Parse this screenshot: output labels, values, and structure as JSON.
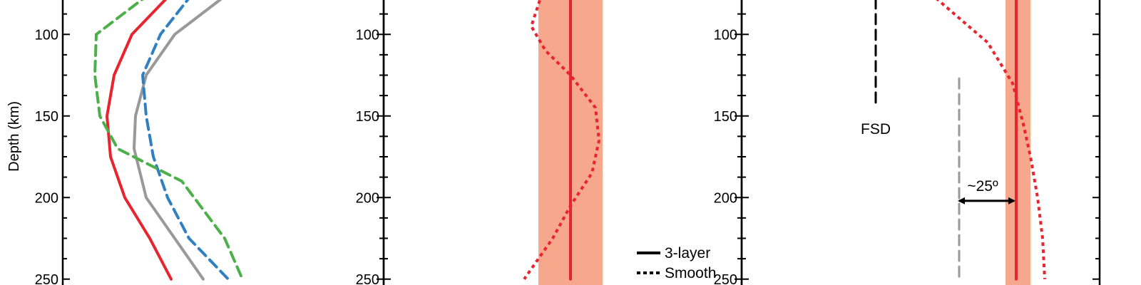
{
  "chart_data": [
    {
      "type": "line",
      "ylabel": "Depth (km)",
      "y_ticks": [
        "100",
        "150",
        "200",
        "250"
      ],
      "ylim": [
        75,
        250
      ],
      "y_reversed": true,
      "series": [
        {
          "color": "#e8242e",
          "style": "solid",
          "points": [
            [
              0.24,
              75
            ],
            [
              0.185,
              100
            ],
            [
              0.16,
              125
            ],
            [
              0.15,
              150
            ],
            [
              0.155,
              175
            ],
            [
              0.175,
              200
            ],
            [
              0.21,
              225
            ],
            [
              0.24,
              250
            ]
          ]
        },
        {
          "color": "#999999",
          "style": "solid",
          "points": [
            [
              0.32,
              75
            ],
            [
              0.245,
              100
            ],
            [
              0.205,
              125
            ],
            [
              0.19,
              150
            ],
            [
              0.188,
              170
            ],
            [
              0.205,
              200
            ],
            [
              0.245,
              225
            ],
            [
              0.285,
              250
            ]
          ]
        },
        {
          "color": "#2f7fc1",
          "style": "dashed",
          "points": [
            [
              0.27,
              75
            ],
            [
              0.225,
              100
            ],
            [
              0.2,
              125
            ],
            [
              0.205,
              150
            ],
            [
              0.215,
              175
            ],
            [
              0.235,
              200
            ],
            [
              0.265,
              225
            ],
            [
              0.32,
              250
            ]
          ]
        },
        {
          "color": "#4daf4a",
          "style": "dashed",
          "points": [
            [
              0.21,
              75
            ],
            [
              0.135,
              100
            ],
            [
              0.133,
              125
            ],
            [
              0.14,
              150
            ],
            [
              0.165,
              170
            ],
            [
              0.255,
              190
            ],
            [
              0.315,
              225
            ],
            [
              0.34,
              250
            ]
          ]
        }
      ]
    },
    {
      "type": "line",
      "y_ticks": [
        "100",
        "150",
        "200",
        "250"
      ],
      "ylim": [
        75,
        250
      ],
      "y_reversed": true,
      "band": {
        "x0": 0.755,
        "x1": 0.845,
        "color": "#f7a78c"
      },
      "series": [
        {
          "name": "3-layer",
          "color": "#e8242e",
          "style": "solid",
          "points": [
            [
              0.8,
              75
            ],
            [
              0.8,
              250
            ]
          ]
        },
        {
          "name": "Smooth",
          "color": "#e8242e",
          "style": "dotted",
          "points": [
            [
              0.76,
              75
            ],
            [
              0.745,
              95
            ],
            [
              0.765,
              110
            ],
            [
              0.8,
              125
            ],
            [
              0.835,
              145
            ],
            [
              0.84,
              165
            ],
            [
              0.83,
              185
            ],
            [
              0.8,
              205
            ],
            [
              0.775,
              225
            ],
            [
              0.735,
              250
            ]
          ]
        }
      ],
      "legend": {
        "position": "bottom-right",
        "entries": [
          "3-layer",
          "Smooth"
        ]
      }
    },
    {
      "type": "line",
      "y_ticks": [
        "100",
        "150",
        "200",
        "250"
      ],
      "ylim": [
        75,
        250
      ],
      "y_reversed": true,
      "band": {
        "x0": 1.41,
        "x1": 1.445,
        "color": "#f7a78c"
      },
      "series": [
        {
          "color": "#e8242e",
          "style": "solid",
          "points": [
            [
              1.425,
              75
            ],
            [
              1.425,
              250
            ]
          ]
        },
        {
          "color": "#e8242e",
          "style": "dotted",
          "points": [
            [
              1.305,
              75
            ],
            [
              1.345,
              90
            ],
            [
              1.385,
              105
            ],
            [
              1.42,
              130
            ],
            [
              1.435,
              155
            ],
            [
              1.445,
              175
            ],
            [
              1.455,
              200
            ],
            [
              1.462,
              225
            ],
            [
              1.465,
              250
            ]
          ]
        },
        {
          "color": "#999999",
          "style": "dashed",
          "points": [
            [
              1.345,
              127
            ],
            [
              1.345,
              250
            ]
          ]
        },
        {
          "color": "#000000",
          "style": "dashed",
          "points": [
            [
              1.228,
              78
            ],
            [
              1.228,
              143
            ]
          ]
        }
      ],
      "annotations": [
        {
          "text": "FSD",
          "x": 1.228,
          "y": 158
        },
        {
          "text": "~25º",
          "x": 1.378,
          "y": 193
        },
        {
          "text": "",
          "arrow_from": [
            1.345,
            202
          ],
          "arrow_to": [
            1.422,
            202
          ]
        }
      ]
    }
  ]
}
